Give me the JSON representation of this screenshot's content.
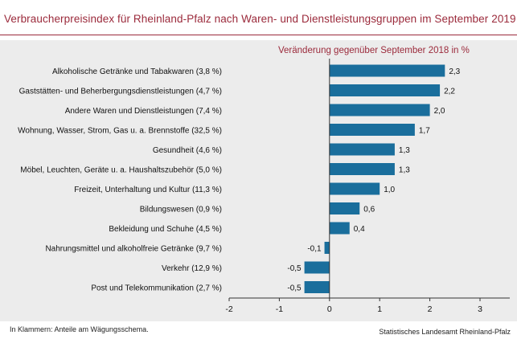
{
  "title": "Verbraucherpreisindex für Rheinland-Pfalz nach Waren- und Dienstleistungsgruppen im September 2019",
  "footnote": "In Klammern: Anteile am Wägungsschema.",
  "source": "Statistisches Landesamt Rheinland-Pfalz",
  "colors": {
    "bar": "#1a6e9c",
    "accent": "#9b2a3b",
    "panel": "#ececec"
  },
  "chart_data": {
    "type": "bar",
    "orientation": "horizontal",
    "subtitle": "Veränderung gegenüber September 2018 in %",
    "categories": [
      "Alkoholische Getränke und Tabakwaren (3,8 %)",
      "Gaststätten- und Beherbergungsdienstleistungen (4,7 %)",
      "Andere Waren und Dienstleistungen (7,4 %)",
      "Wohnung, Wasser, Strom, Gas u. a. Brennstoffe (32,5 %)",
      "Gesundheit (4,6 %)",
      "Möbel, Leuchten, Geräte u. a. Haushaltszubehör (5,0 %)",
      "Freizeit, Unterhaltung und Kultur (11,3 %)",
      "Bildungswesen (0,9 %)",
      "Bekleidung und Schuhe (4,5 %)",
      "Nahrungsmittel und alkoholfreie Getränke (9,7 %)",
      "Verkehr (12,9 %)",
      "Post und Telekommunikation (2,7 %)"
    ],
    "values": [
      2.3,
      2.2,
      2.0,
      1.7,
      1.3,
      1.3,
      1.0,
      0.6,
      0.4,
      -0.1,
      -0.5,
      -0.5
    ],
    "value_labels": [
      "2,3",
      "2,2",
      "2,0",
      "1,7",
      "1,3",
      "1,3",
      "1,0",
      "0,6",
      "0,4",
      "-0,1",
      "-0,5",
      "-0,5"
    ],
    "xlim": [
      -2,
      3
    ],
    "xticks": [
      -2,
      -1,
      0,
      1,
      2,
      3
    ],
    "xtick_labels": [
      "-2",
      "-1",
      "0",
      "1",
      "2",
      "3"
    ],
    "grid": false,
    "legend": "none"
  }
}
